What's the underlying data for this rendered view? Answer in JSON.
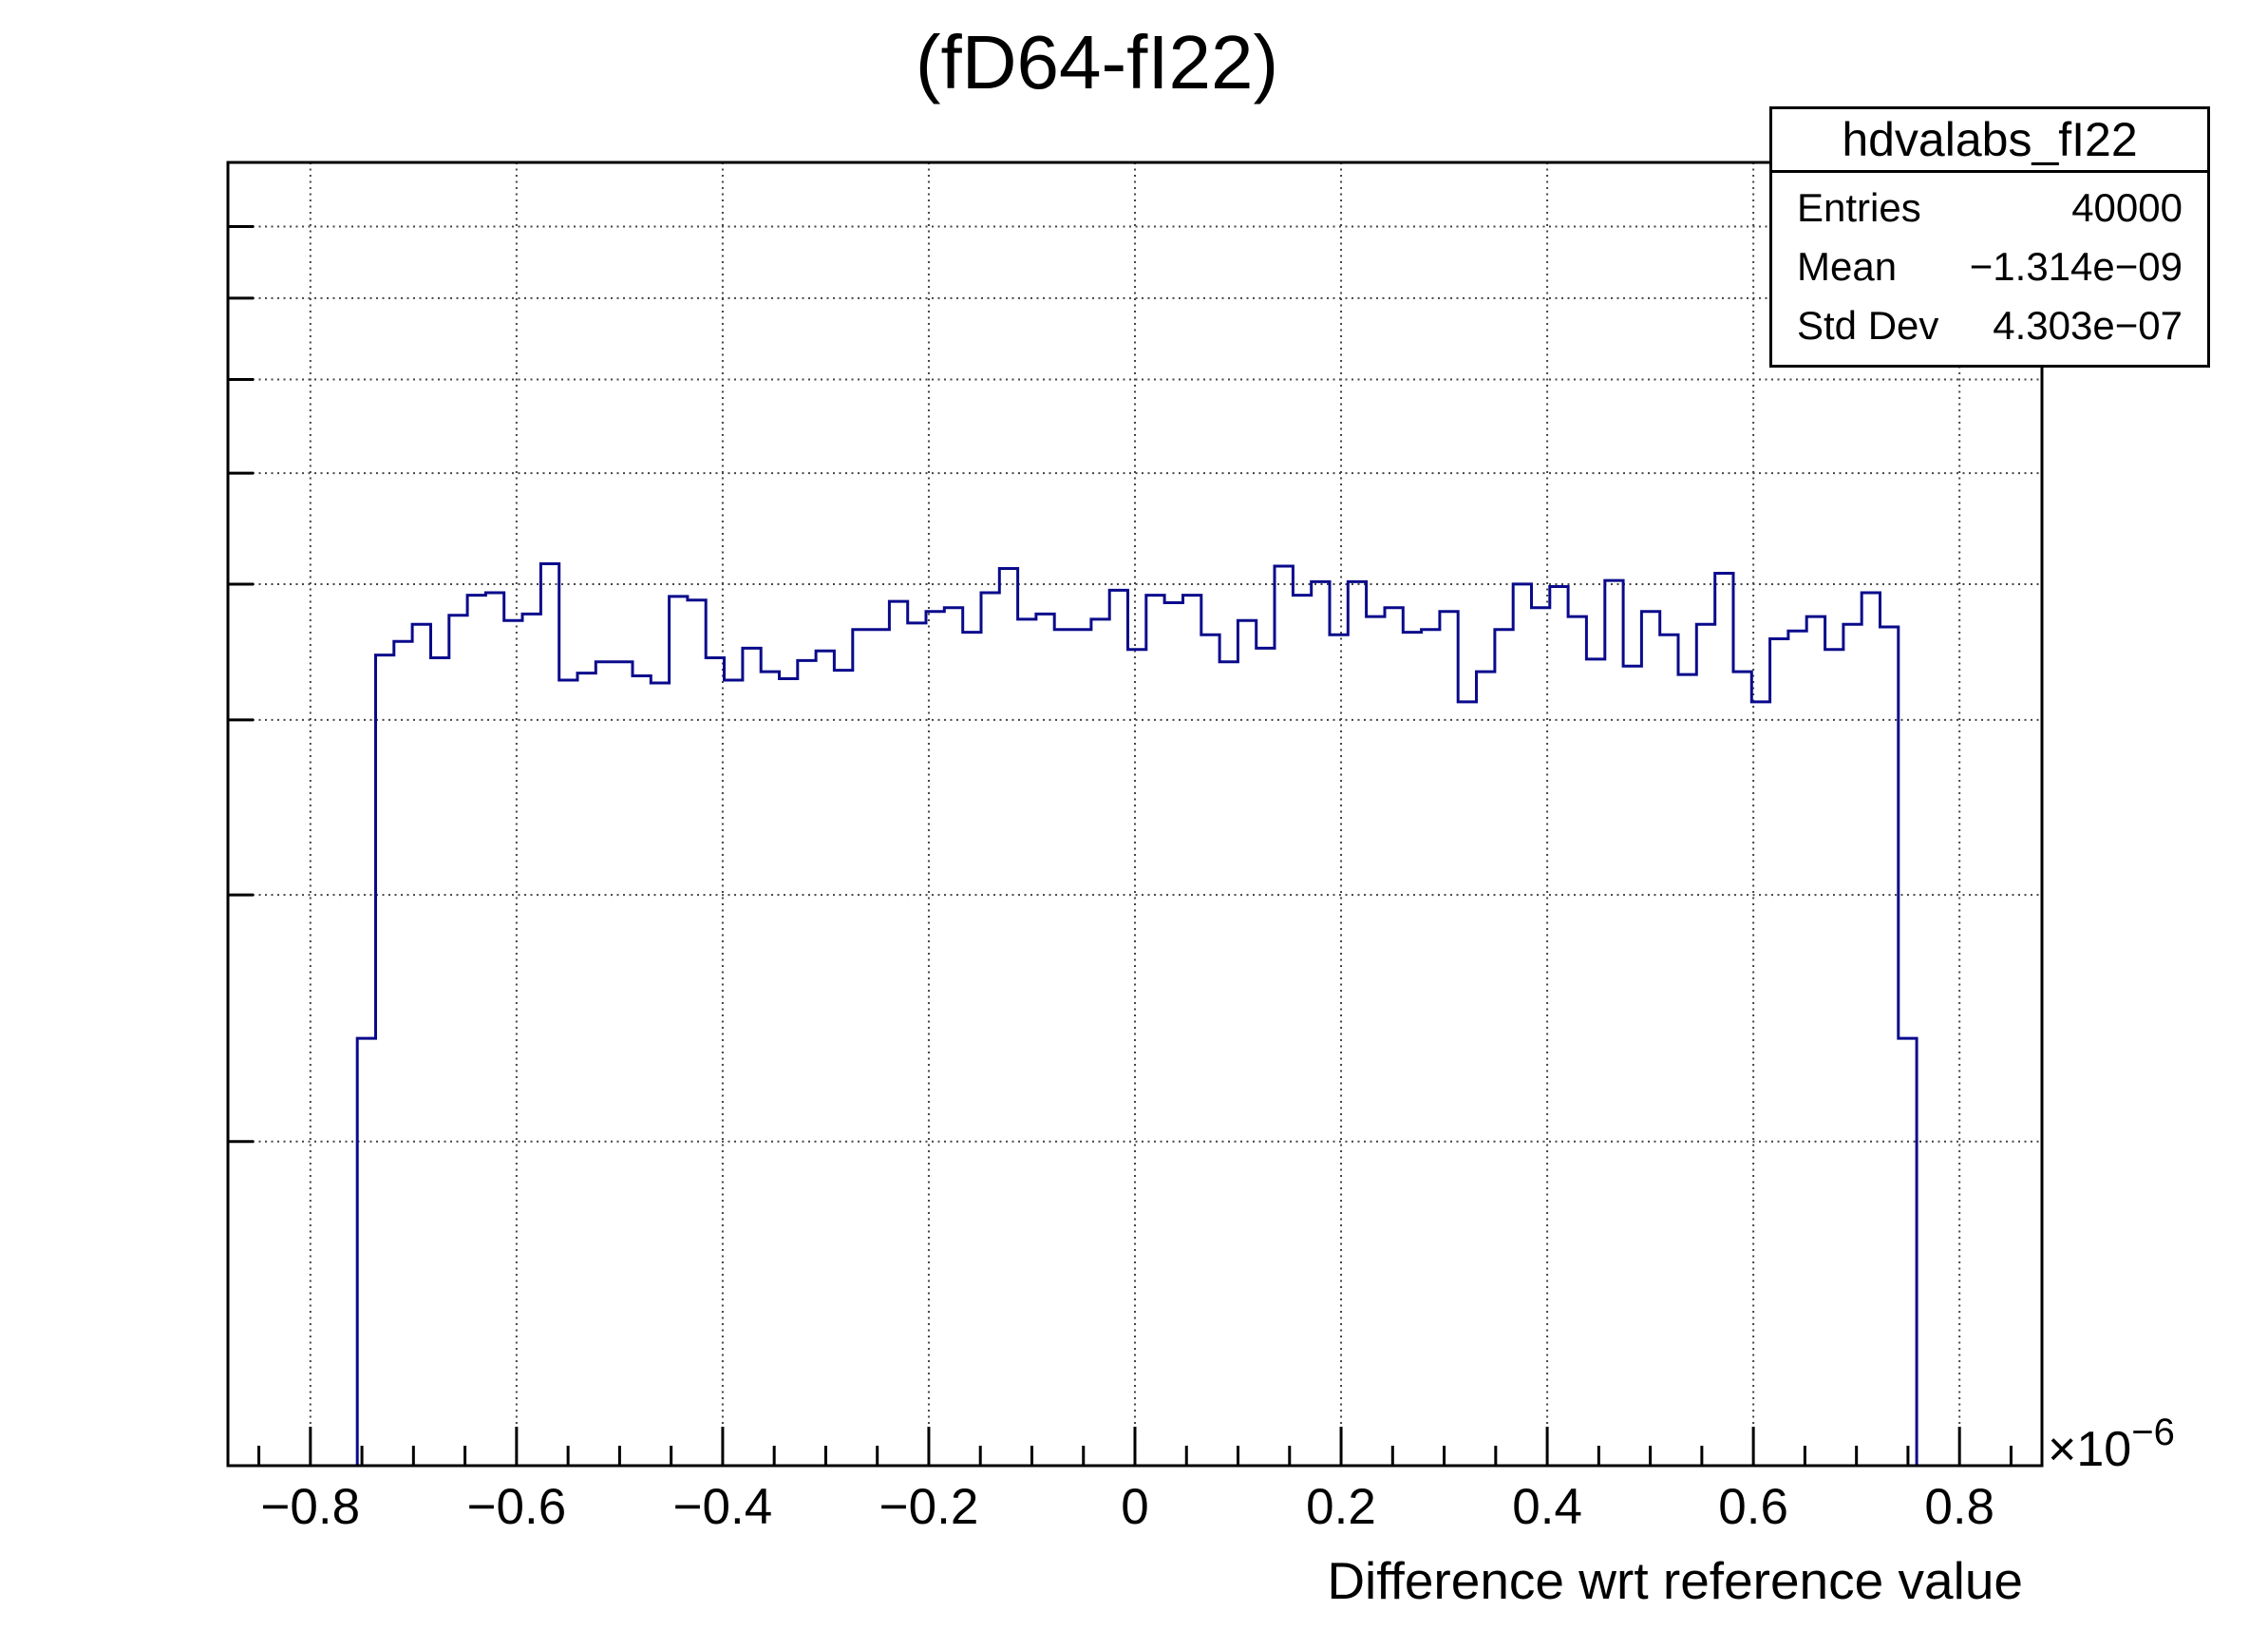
{
  "title": {
    "text": "(fD64-fI22)"
  },
  "stats_box": {
    "title": "hdvalabs_fI22",
    "rows": [
      {
        "label": "Entries",
        "value": "40000"
      },
      {
        "label": "Mean",
        "value": "−1.314e−09"
      },
      {
        "label": "Std Dev",
        "value": "4.303e−07"
      }
    ]
  },
  "x_axis": {
    "title": "Difference wrt reference value",
    "exponent_base": "×10",
    "exponent_power": "−6",
    "range": [
      -0.88,
      0.88
    ],
    "major_tick_values": [
      -0.8,
      -0.6,
      -0.4,
      -0.2,
      0,
      0.2,
      0.4,
      0.6,
      0.8
    ],
    "tick_labels": [
      "−0.8",
      "−0.6",
      "−0.4",
      "−0.2",
      "0",
      "0.2",
      "0.4",
      "0.6",
      "0.8"
    ],
    "minor_tick_step": 0.05
  },
  "y_axis": {
    "scale": "log",
    "range": [
      117.4,
      1000
    ],
    "gridline_values": [
      200,
      300,
      400,
      500,
      600,
      700,
      800,
      900
    ],
    "labels_visible": false
  },
  "chart_data": {
    "type": "bar",
    "subtype": "step-histogram",
    "title": "(fD64-fI22)",
    "xlabel": "Difference wrt reference value",
    "x_unit_multiplier": 1e-06,
    "entries": 40000,
    "mean": -1.314e-09,
    "std_dev": 4.303e-07,
    "line_color": "#0a0a8c",
    "grid_color": "#444444",
    "frame_color": "#000000",
    "first_edge": -0.7545,
    "bin_width": 0.0178,
    "counts": [
      237,
      445,
      455,
      468,
      443,
      475,
      491,
      493,
      471,
      476,
      517,
      427,
      432,
      440,
      440,
      430,
      425,
      490,
      487,
      443,
      427,
      450,
      433,
      428,
      441,
      448,
      434,
      464,
      464,
      486,
      469,
      478,
      481,
      462,
      493,
      513,
      472,
      476,
      464,
      464,
      472,
      495,
      449,
      491,
      485,
      491,
      460,
      440,
      471,
      450,
      515,
      491,
      502,
      460,
      502,
      474,
      481,
      462,
      464,
      478,
      412,
      433,
      464,
      500,
      481,
      498,
      474,
      442,
      503,
      437,
      478,
      460,
      431,
      468,
      509,
      433,
      412,
      457,
      463,
      474,
      449,
      468,
      493,
      466,
      237
    ]
  }
}
